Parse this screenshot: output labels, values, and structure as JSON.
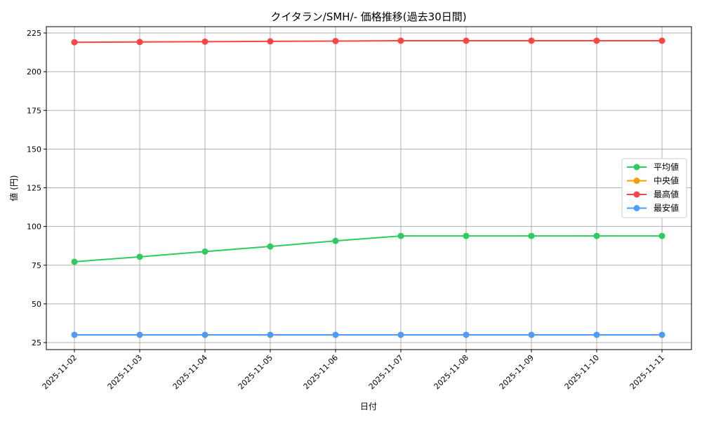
{
  "chart_data": {
    "type": "line",
    "title": "クイタラン/SMH/- 価格推移(過去30日間)",
    "xlabel": "日付",
    "ylabel": "値 (円)",
    "ylim": [
      20,
      230
    ],
    "yticks": [
      25,
      50,
      75,
      100,
      125,
      150,
      175,
      200,
      225
    ],
    "grid": true,
    "legend_position": "center-right",
    "categories": [
      "2025-11-02",
      "2025-11-03",
      "2025-11-04",
      "2025-11-05",
      "2025-11-06",
      "2025-11-07",
      "2025-11-08",
      "2025-11-09",
      "2025-11-10",
      "2025-11-11"
    ],
    "series": [
      {
        "name": "平均値",
        "color": "#2ecc5f",
        "values": [
          77.2,
          80.4,
          83.8,
          87.1,
          90.7,
          93.9,
          93.9,
          93.9,
          93.9,
          93.9
        ]
      },
      {
        "name": "中央値",
        "color": "#f5a000",
        "values": [
          null,
          null,
          null,
          null,
          null,
          null,
          null,
          null,
          null,
          null
        ]
      },
      {
        "name": "最高値",
        "color": "#ff4444",
        "values": [
          219.0,
          219.2,
          219.4,
          219.6,
          219.8,
          220.0,
          220.0,
          220.0,
          220.0,
          220.0
        ]
      },
      {
        "name": "最安値",
        "color": "#4c9bff",
        "values": [
          30,
          30,
          30,
          30,
          30,
          30,
          30,
          30,
          30,
          30
        ]
      }
    ]
  }
}
